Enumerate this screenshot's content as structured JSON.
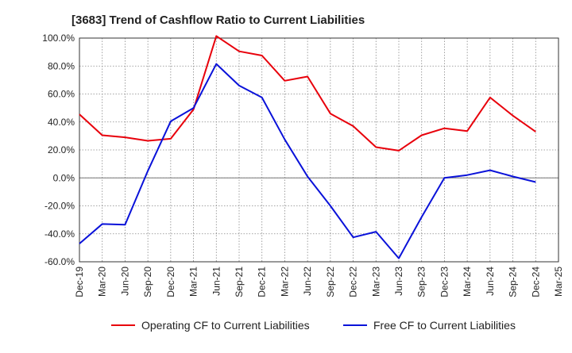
{
  "chart_data": {
    "type": "line",
    "title": "[3683]  Trend of Cashflow Ratio to Current Liabilities",
    "xlabel": "",
    "ylabel": "",
    "ylim": [
      -60,
      100
    ],
    "yticks": [
      100,
      80,
      60,
      40,
      20,
      0,
      -20,
      -40,
      -60
    ],
    "ytick_suffix": ".0%",
    "grid": true,
    "legend_position": "bottom",
    "x_tick_labels": [
      "Dec-19",
      "Mar-20",
      "Jun-20",
      "Sep-20",
      "Dec-20",
      "Mar-21",
      "Jun-21",
      "Sep-21",
      "Dec-21",
      "Mar-22",
      "Jun-22",
      "Sep-22",
      "Dec-22",
      "Mar-23",
      "Jun-23",
      "Sep-23",
      "Dec-23",
      "Mar-24",
      "Jun-24",
      "Sep-24",
      "Dec-24",
      "Mar-25"
    ],
    "x": [
      "Dec-19",
      "Mar-20",
      "Jun-20",
      "Sep-20",
      "Dec-20",
      "Mar-21",
      "Jun-21",
      "Sep-21",
      "Dec-21",
      "Mar-22",
      "Jun-22",
      "Sep-22",
      "Dec-22",
      "Mar-23",
      "Jun-23",
      "Sep-23",
      "Dec-23",
      "Mar-24",
      "Jun-24",
      "Sep-24",
      "Dec-24"
    ],
    "series": [
      {
        "name": "Operating CF to Current Liabilities",
        "color": "#e8000b",
        "values": [
          45.5,
          30.5,
          29.0,
          26.5,
          28.0,
          49.0,
          101.5,
          90.5,
          87.5,
          69.5,
          72.5,
          46.0,
          37.0,
          22.0,
          19.5,
          30.5,
          35.5,
          33.5,
          57.5,
          44.5,
          33.0
        ]
      },
      {
        "name": "Free CF to Current Liabilities",
        "color": "#0a12d9",
        "values": [
          -47.0,
          -33.0,
          -33.5,
          5.0,
          40.5,
          50.0,
          81.5,
          66.0,
          57.5,
          27.5,
          1.0,
          -20.0,
          -42.5,
          -38.5,
          -57.5,
          -28.0,
          0.0,
          2.0,
          5.5,
          1.0,
          -3.0
        ]
      }
    ]
  }
}
